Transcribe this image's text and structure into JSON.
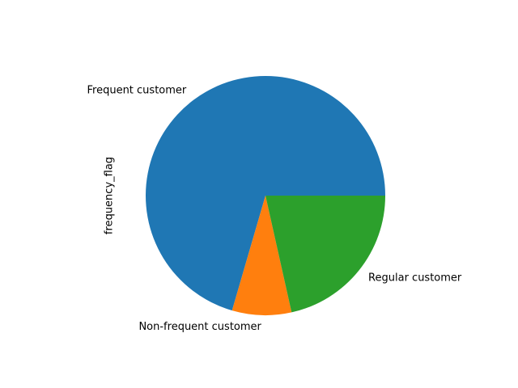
{
  "chart_data": {
    "type": "pie",
    "ylabel": "frequency_flag",
    "slices": [
      {
        "label": "Frequent customer",
        "value": 70.5,
        "color": "#1f77b4"
      },
      {
        "label": "Non-frequent customer",
        "value": 8.0,
        "color": "#ff7f0e"
      },
      {
        "label": "Regular customer",
        "value": 21.5,
        "color": "#2ca02c"
      }
    ],
    "legend": false
  }
}
